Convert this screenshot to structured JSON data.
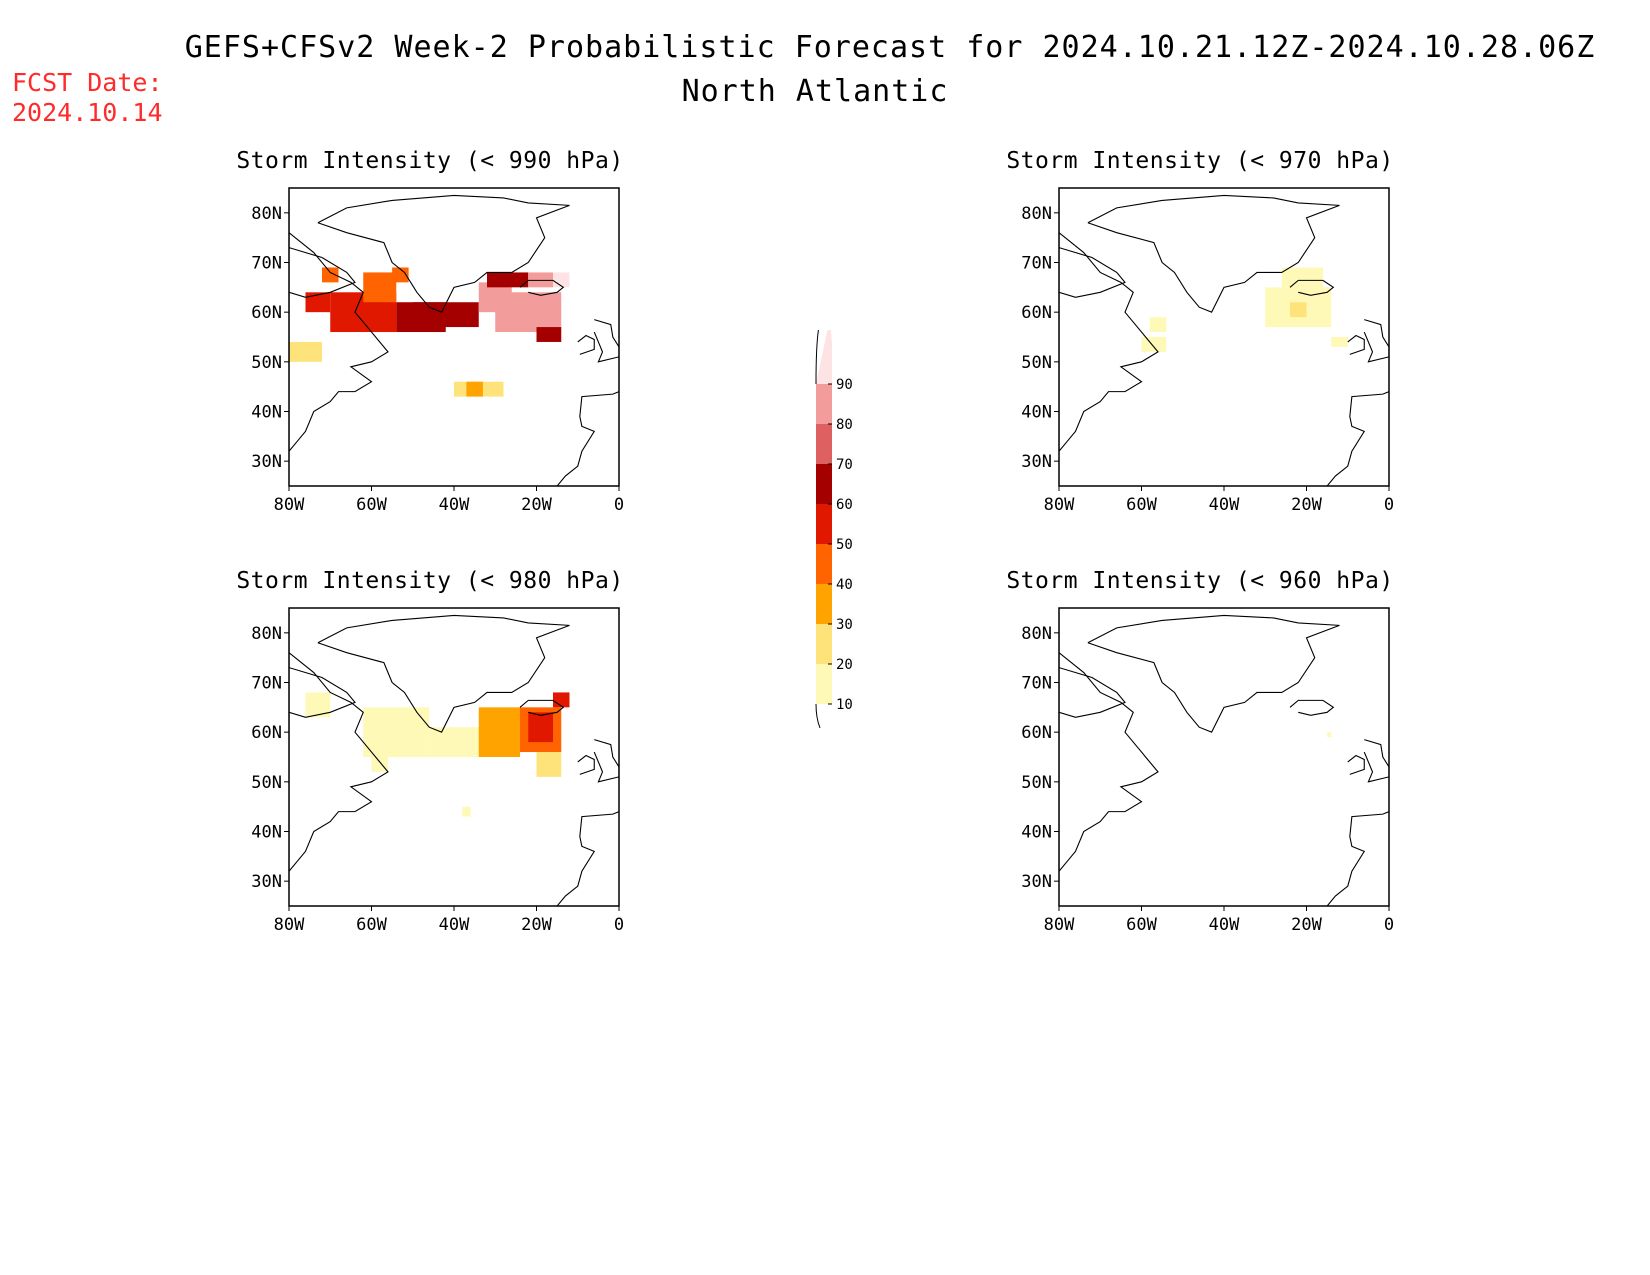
{
  "header": {
    "title": "GEFS+CFSv2 Week-2 Probabilistic Forecast for 2024.10.21.12Z-2024.10.28.06Z",
    "region": "North Atlantic",
    "fcst_label": "FCST Date:",
    "fcst_date": "2024.10.14"
  },
  "axes": {
    "lat_ticks": [
      "80N",
      "70N",
      "60N",
      "50N",
      "40N",
      "30N"
    ],
    "lon_ticks": [
      "80W",
      "60W",
      "40W",
      "20W",
      "0"
    ],
    "lat_range": [
      25,
      85
    ],
    "lon_range": [
      -80,
      0
    ]
  },
  "colorbar": {
    "levels": [
      "10",
      "20",
      "30",
      "40",
      "50",
      "60",
      "70",
      "80",
      "90"
    ],
    "colors": [
      "#fff9b8",
      "#fde37a",
      "#ffa300",
      "#ff6400",
      "#e11800",
      "#a50000",
      "#de6060",
      "#f39c9c",
      "#fde3e3"
    ]
  },
  "panels": [
    {
      "id": "p990",
      "title": "Storm Intensity (< 990 hPa)",
      "cells": [
        {
          "lon": -72,
          "lat": 66,
          "w": 4,
          "h": 3,
          "c": 3
        },
        {
          "lon": -76,
          "lat": 60,
          "w": 6,
          "h": 4,
          "c": 4
        },
        {
          "lon": -70,
          "lat": 56,
          "w": 16,
          "h": 8,
          "c": 4
        },
        {
          "lon": -54,
          "lat": 56,
          "w": 12,
          "h": 6,
          "c": 5
        },
        {
          "lon": -62,
          "lat": 62,
          "w": 8,
          "h": 6,
          "c": 3
        },
        {
          "lon": -55,
          "lat": 66,
          "w": 4,
          "h": 3,
          "c": 3
        },
        {
          "lon": -50,
          "lat": 57,
          "w": 16,
          "h": 5,
          "c": 5
        },
        {
          "lon": -34,
          "lat": 60,
          "w": 8,
          "h": 6,
          "c": 7
        },
        {
          "lon": -30,
          "lat": 56,
          "w": 16,
          "h": 8,
          "c": 7
        },
        {
          "lon": -32,
          "lat": 65,
          "w": 10,
          "h": 3,
          "c": 5
        },
        {
          "lon": -22,
          "lat": 65,
          "w": 6,
          "h": 3,
          "c": 7
        },
        {
          "lon": -16,
          "lat": 65,
          "w": 4,
          "h": 3,
          "c": 8
        },
        {
          "lon": -20,
          "lat": 54,
          "w": 6,
          "h": 3,
          "c": 5
        },
        {
          "lon": -80,
          "lat": 50,
          "w": 8,
          "h": 4,
          "c": 1
        },
        {
          "lon": -40,
          "lat": 43,
          "w": 12,
          "h": 3,
          "c": 1
        },
        {
          "lon": -37,
          "lat": 43,
          "w": 4,
          "h": 3,
          "c": 2
        }
      ]
    },
    {
      "id": "p970",
      "title": "Storm Intensity (< 970 hPa)",
      "cells": [
        {
          "lon": -30,
          "lat": 57,
          "w": 16,
          "h": 8,
          "c": 0
        },
        {
          "lon": -26,
          "lat": 64,
          "w": 10,
          "h": 5,
          "c": 0
        },
        {
          "lon": -58,
          "lat": 56,
          "w": 4,
          "h": 3,
          "c": 0
        },
        {
          "lon": -60,
          "lat": 52,
          "w": 6,
          "h": 3,
          "c": 0
        },
        {
          "lon": -24,
          "lat": 59,
          "w": 4,
          "h": 3,
          "c": 1
        },
        {
          "lon": -14,
          "lat": 53,
          "w": 4,
          "h": 2,
          "c": 0
        }
      ]
    },
    {
      "id": "p980",
      "title": "Storm Intensity (< 980 hPa)",
      "cells": [
        {
          "lon": -76,
          "lat": 63,
          "w": 6,
          "h": 5,
          "c": 0
        },
        {
          "lon": -62,
          "lat": 55,
          "w": 16,
          "h": 10,
          "c": 0
        },
        {
          "lon": -46,
          "lat": 55,
          "w": 14,
          "h": 6,
          "c": 0
        },
        {
          "lon": -34,
          "lat": 55,
          "w": 10,
          "h": 10,
          "c": 2
        },
        {
          "lon": -24,
          "lat": 56,
          "w": 10,
          "h": 9,
          "c": 3
        },
        {
          "lon": -22,
          "lat": 58,
          "w": 6,
          "h": 6,
          "c": 4
        },
        {
          "lon": -16,
          "lat": 65,
          "w": 4,
          "h": 3,
          "c": 4
        },
        {
          "lon": -20,
          "lat": 51,
          "w": 6,
          "h": 5,
          "c": 1
        },
        {
          "lon": -60,
          "lat": 52,
          "w": 4,
          "h": 3,
          "c": 0
        },
        {
          "lon": -38,
          "lat": 43,
          "w": 2,
          "h": 2,
          "c": 0
        }
      ]
    },
    {
      "id": "p960",
      "title": "Storm Intensity (< 960 hPa)",
      "cells": [
        {
          "lon": -15,
          "lat": 59,
          "w": 1,
          "h": 1,
          "c": 0
        }
      ]
    }
  ]
}
